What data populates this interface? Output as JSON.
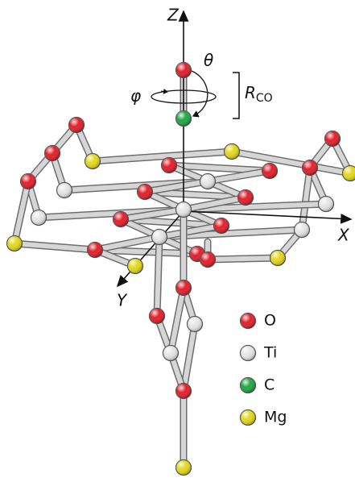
{
  "axes": {
    "z": "Z",
    "x": "X",
    "y": "Y"
  },
  "annotations": {
    "theta": "θ",
    "phi": "φ",
    "r": "R",
    "r_sub": "CO"
  },
  "legend": [
    {
      "label": "O",
      "color": "#e3202b"
    },
    {
      "label": "Ti",
      "color": "#e6e6e6"
    },
    {
      "label": "C",
      "color": "#22a845"
    },
    {
      "label": "Mg",
      "color": "#e3d81c"
    }
  ]
}
